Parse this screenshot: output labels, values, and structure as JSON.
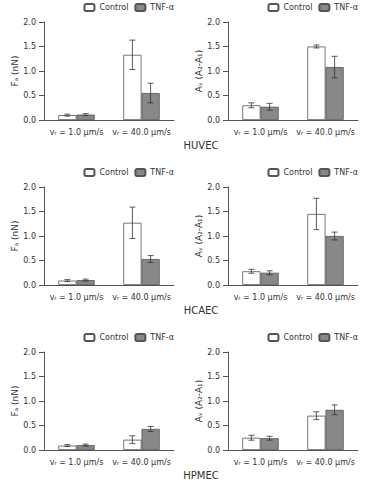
{
  "chart_data": [
    {
      "type": "bar",
      "annotations": [
        "HUVEC"
      ],
      "categories": [
        "vᵣ = 1.0 μm/s",
        "vᵣ = 40.0 μm/s"
      ],
      "series": [
        {
          "name": "Control",
          "color": "#ffffff",
          "values": [
            0.1,
            1.33
          ],
          "errors": [
            0.02,
            0.3
          ]
        },
        {
          "name": "TNF-α",
          "color": "#888888",
          "values": [
            0.11,
            0.55
          ],
          "errors": [
            0.02,
            0.2
          ]
        }
      ],
      "y_label": "Fₐ (nN)",
      "ylim": [
        0,
        2.0
      ],
      "yticks": [
        {
          "value": 0,
          "label": "0.0"
        },
        0.5,
        {
          "value": 1,
          "label": "1.0"
        },
        1.5,
        {
          "value": 2,
          "label": "2.0"
        }
      ],
      "grid": false,
      "legend": "upper right"
    },
    {
      "type": "bar",
      "categories": [
        "vᵣ = 1.0 μm/s",
        "vᵣ = 40.0 μm/s"
      ],
      "series": [
        {
          "name": "Control",
          "color": "#ffffff",
          "values": [
            0.3,
            1.5
          ],
          "errors": [
            0.05,
            0.03
          ]
        },
        {
          "name": "TNF-α",
          "color": "#888888",
          "values": [
            0.27,
            1.08
          ],
          "errors": [
            0.07,
            0.22
          ]
        }
      ],
      "y_label": "Aᵥ (A₂-A₁)",
      "ylim": [
        0,
        2.0
      ],
      "yticks": [
        {
          "value": 0,
          "label": "0.0"
        },
        0.5,
        {
          "value": 1,
          "label": "1.0"
        },
        1.5,
        {
          "value": 2,
          "label": "2.0"
        }
      ],
      "grid": false,
      "legend": "upper right"
    },
    {
      "type": "bar",
      "annotations": [
        "HCAEC"
      ],
      "categories": [
        "vᵣ = 1.0 μm/s",
        "vᵣ = 40.0 μm/s"
      ],
      "series": [
        {
          "name": "Control",
          "color": "#ffffff",
          "values": [
            0.09,
            1.27
          ],
          "errors": [
            0.02,
            0.32
          ]
        },
        {
          "name": "TNF-α",
          "color": "#888888",
          "values": [
            0.1,
            0.53
          ],
          "errors": [
            0.02,
            0.07
          ]
        }
      ],
      "y_label": "Fₐ (nN)",
      "ylim": [
        0,
        2.0
      ],
      "yticks": [
        {
          "value": 0,
          "label": "0.0"
        },
        0.5,
        {
          "value": 1,
          "label": "1.0"
        },
        1.5,
        {
          "value": 2,
          "label": "2.0"
        }
      ],
      "grid": false,
      "legend": "upper right"
    },
    {
      "type": "bar",
      "categories": [
        "vᵣ = 1.0 μm/s",
        "vᵣ = 40.0 μm/s"
      ],
      "series": [
        {
          "name": "Control",
          "color": "#ffffff",
          "values": [
            0.28,
            1.45
          ],
          "errors": [
            0.04,
            0.32
          ]
        },
        {
          "name": "TNF-α",
          "color": "#888888",
          "values": [
            0.25,
            1.0
          ],
          "errors": [
            0.04,
            0.08
          ]
        }
      ],
      "y_label": "Aᵥ (A₂-A₁)",
      "ylim": [
        0,
        2.0
      ],
      "yticks": [
        {
          "value": 0,
          "label": "0.0"
        },
        0.5,
        {
          "value": 1,
          "label": "1.0"
        },
        1.5,
        {
          "value": 2,
          "label": "2.0"
        }
      ],
      "grid": false,
      "legend": "upper right"
    },
    {
      "type": "bar",
      "annotations": [
        "HPMEC"
      ],
      "categories": [
        "vᵣ = 1.0 μm/s",
        "vᵣ = 40.0 μm/s"
      ],
      "series": [
        {
          "name": "Control",
          "color": "#ffffff",
          "values": [
            0.09,
            0.21
          ],
          "errors": [
            0.02,
            0.08
          ]
        },
        {
          "name": "TNF-α",
          "color": "#888888",
          "values": [
            0.1,
            0.43
          ],
          "errors": [
            0.02,
            0.05
          ]
        }
      ],
      "y_label": "Fₐ (nN)",
      "ylim": [
        0,
        2.0
      ],
      "yticks": [
        {
          "value": 0,
          "label": "0.0"
        },
        0.5,
        {
          "value": 1,
          "label": "1.0"
        },
        1.5,
        {
          "value": 2,
          "label": "2.0"
        }
      ],
      "grid": false,
      "legend": "upper right"
    },
    {
      "type": "bar",
      "categories": [
        "vᵣ = 1.0 μm/s",
        "vᵣ = 40.0 μm/s"
      ],
      "series": [
        {
          "name": "Control",
          "color": "#ffffff",
          "values": [
            0.25,
            0.7
          ],
          "errors": [
            0.05,
            0.08
          ]
        },
        {
          "name": "TNF-α",
          "color": "#888888",
          "values": [
            0.24,
            0.82
          ],
          "errors": [
            0.04,
            0.1
          ]
        }
      ],
      "y_label": "Aᵥ (A₂-A₁)",
      "ylim": [
        0,
        2.0
      ],
      "yticks": [
        {
          "value": 0,
          "label": "0.0"
        },
        0.5,
        {
          "value": 1,
          "label": "1.0"
        },
        1.5,
        {
          "value": 2,
          "label": "2.0"
        }
      ],
      "grid": false,
      "legend": "upper right"
    }
  ]
}
